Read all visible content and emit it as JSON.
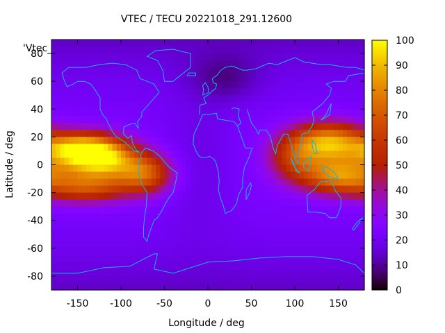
{
  "chart_data": {
    "type": "heatmap",
    "title": "VTEC / TECU 20221018_291.12600",
    "xlabel": "Longitude / deg",
    "ylabel": "Latitude / deg",
    "key_label": "'Vtec_",
    "xlim": [
      -180,
      180
    ],
    "ylim": [
      -90,
      90
    ],
    "x_ticks": [
      -150,
      -100,
      -50,
      0,
      50,
      100,
      150
    ],
    "x_tick_labels": [
      "-150",
      "-100",
      "-50",
      "0",
      "50",
      "100",
      "150"
    ],
    "y_ticks": [
      -80,
      -60,
      -40,
      -20,
      0,
      20,
      40,
      60,
      80
    ],
    "y_tick_labels": [
      "-80",
      "-60",
      "-40",
      "-20",
      "0",
      "20",
      "40",
      "60",
      "80"
    ],
    "colorbar": {
      "range": [
        0,
        100
      ],
      "ticks": [
        0,
        10,
        20,
        30,
        40,
        50,
        60,
        70,
        80,
        90,
        100
      ],
      "tick_labels": [
        "0",
        "10",
        "20",
        "30",
        "40",
        "50",
        "60",
        "70",
        "80",
        "90",
        "100"
      ]
    },
    "grid": false,
    "features": [
      {
        "lon": -150,
        "lat": 8,
        "lon_sigma": 30,
        "lat_sigma": 10,
        "value": 58
      },
      {
        "lon": -115,
        "lat": 4,
        "lon_sigma": 25,
        "lat_sigma": 10,
        "value": 48
      },
      {
        "lon": -72,
        "lat": -6,
        "lon_sigma": 22,
        "lat_sigma": 10,
        "value": 45
      },
      {
        "lon": -140,
        "lat": -16,
        "lon_sigma": 35,
        "lat_sigma": 8,
        "value": 40
      },
      {
        "lon": -150,
        "lat": 14,
        "lon_sigma": 30,
        "lat_sigma": 6,
        "value": 18
      },
      {
        "lon": 140,
        "lat": 16,
        "lon_sigma": 28,
        "lat_sigma": 10,
        "value": 60
      },
      {
        "lon": 150,
        "lat": -8,
        "lon_sigma": 30,
        "lat_sigma": 9,
        "value": 52
      },
      {
        "lon": 100,
        "lat": 6,
        "lon_sigma": 22,
        "lat_sigma": 12,
        "value": 32
      },
      {
        "lon": 20,
        "lat": 62,
        "lon_sigma": 28,
        "lat_sigma": 12,
        "value": -10
      },
      {
        "lon": -10,
        "lat": 0,
        "lon_sigma": 30,
        "lat_sigma": 35,
        "value": -6
      }
    ],
    "background_value": 24,
    "pole_value": 14
  },
  "colors": {
    "coastline": "#17b4e6",
    "axis": "#000000"
  }
}
